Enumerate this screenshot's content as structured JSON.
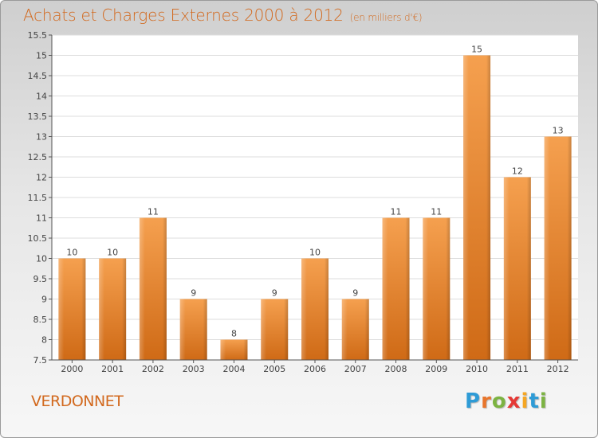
{
  "title": "Achats et Charges Externes 2000 à 2012",
  "unit": "(en milliers d'€)",
  "commune": "VERDONNET",
  "logo": {
    "letters": [
      "P",
      "r",
      "o",
      "x",
      "i",
      "t",
      "i"
    ],
    "colors": [
      "#2e9bd6",
      "#e8762d",
      "#7cb342",
      "#e53935",
      "#f5a623",
      "#2e9bd6",
      "#7cb342"
    ]
  },
  "chart_data": {
    "type": "bar",
    "categories": [
      "2000",
      "2001",
      "2002",
      "2003",
      "2004",
      "2005",
      "2006",
      "2007",
      "2008",
      "2009",
      "2010",
      "2011",
      "2012"
    ],
    "values": [
      10,
      10,
      11,
      9,
      8,
      9,
      10,
      9,
      11,
      11,
      15,
      12,
      13
    ],
    "ylim": [
      7.5,
      15.5
    ],
    "yticks": [
      "7.5",
      "8",
      "8.5",
      "9",
      "9.5",
      "10",
      "10.5",
      "11",
      "11.5",
      "12",
      "12.5",
      "13",
      "13.5",
      "14",
      "14.5",
      "15",
      "15.5"
    ],
    "grid": true,
    "bar_color": "#e8832a"
  }
}
